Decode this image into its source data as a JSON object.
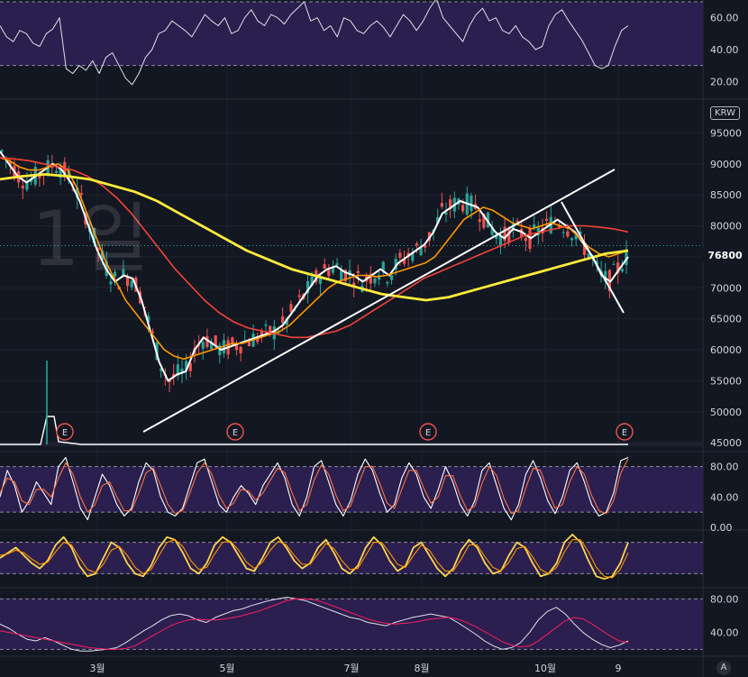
{
  "watermark": "1일",
  "currency_button": "KRW",
  "auto_button": "A",
  "last_price": "76800",
  "earnings_marker": "E",
  "colors": {
    "background": "#131722",
    "panel_band": "#2a1f4e",
    "up_candle": "#26a69a",
    "down_candle": "#ef5350",
    "ma_white": "#ffffff",
    "ma_orange": "#ff9800",
    "ma_red": "#f44336",
    "ma_yellow": "#ffeb3b",
    "trendline": "#ffffff"
  },
  "chart_data": [
    {
      "type": "line",
      "panel": "rsi",
      "ylim": [
        10,
        70
      ],
      "y_ticks": [
        "60.00",
        "40.00",
        "20.00"
      ],
      "bands": [
        30,
        70
      ],
      "series": [
        {
          "values": [
            55,
            48,
            45,
            52,
            50,
            44,
            42,
            50,
            53,
            60,
            28,
            25,
            30,
            27,
            33,
            25,
            35,
            38,
            30,
            22,
            18,
            25,
            35,
            40,
            50,
            52,
            58,
            55,
            52,
            48,
            55,
            62,
            58,
            55,
            60,
            50,
            52,
            60,
            65,
            58,
            55,
            62,
            60,
            56,
            62,
            66,
            70,
            58,
            60,
            52,
            55,
            48,
            60,
            58,
            52,
            50,
            55,
            58,
            54,
            48,
            55,
            62,
            58,
            52,
            58,
            66,
            72,
            60,
            55,
            50,
            45,
            55,
            62,
            66,
            58,
            60,
            52,
            50,
            55,
            48,
            45,
            40,
            42,
            55,
            62,
            65,
            58,
            52,
            46,
            38,
            30,
            28,
            30,
            42,
            52,
            55
          ]
        }
      ]
    },
    {
      "type": "line",
      "panel": "price",
      "ylim": [
        44000,
        100000
      ],
      "y_ticks": [
        "95000",
        "90000",
        "85000",
        "80000",
        "75000",
        "70000",
        "65000",
        "60000",
        "55000",
        "50000",
        "45000"
      ],
      "x_ticks": [
        "3월",
        "5월",
        "7월",
        "8월",
        "10월",
        "9"
      ],
      "series": [
        {
          "values": [
            92000,
            90000,
            88000,
            87000,
            88000,
            89000,
            90000,
            89000,
            87000,
            84000,
            80000,
            76000,
            73000,
            71000,
            72000,
            71500,
            68000,
            63000,
            58000,
            55000,
            56000,
            56500,
            60000,
            62000,
            61000,
            60000,
            60500,
            61000,
            61500,
            62000,
            62500,
            63000,
            64000,
            66000,
            68000,
            70000,
            72000,
            73000,
            73500,
            72500,
            72000,
            71000,
            72000,
            73000,
            72000,
            74000,
            75000,
            76000,
            77000,
            79000,
            82000,
            83000,
            84000,
            83500,
            83000,
            81000,
            79000,
            78000,
            79500,
            79000,
            78000,
            79000,
            80000,
            81000,
            80000,
            79000,
            77000,
            75000,
            72000,
            71000,
            73000,
            75000
          ]
        },
        {
          "values": [
            91000,
            90500,
            89500,
            89000,
            89000,
            89500,
            90000,
            89000,
            86000,
            82000,
            78000,
            74000,
            71000,
            68000,
            66000,
            64000,
            62000,
            60000,
            59000,
            58500,
            59000,
            59500,
            60000,
            60500,
            61000,
            61000,
            61500,
            62000,
            62500,
            63000,
            64000,
            65500,
            67000,
            68500,
            70000,
            71000,
            71500,
            72000,
            72000,
            71800,
            72000,
            72500,
            73000,
            73500,
            74000,
            75000,
            77000,
            79000,
            81000,
            82000,
            83000,
            82500,
            81500,
            80500,
            80000,
            79500,
            80000,
            80500,
            80000,
            79500,
            78000,
            76500,
            75500,
            75000,
            75500,
            76000
          ]
        },
        {
          "values": [
            91000,
            90800,
            90500,
            90000,
            89500,
            89000,
            88000,
            86500,
            84500,
            82000,
            79000,
            76000,
            73000,
            70500,
            68000,
            66000,
            64500,
            63500,
            63000,
            62500,
            62000,
            62000,
            62500,
            63000,
            64000,
            65500,
            67000,
            68500,
            70000,
            71500,
            72500,
            73500,
            74500,
            75500,
            76500,
            77500,
            78500,
            79000,
            79500,
            80000,
            80000,
            79800,
            79500,
            79000
          ]
        },
        {
          "values": [
            87500,
            88000,
            88300,
            88000,
            87500,
            86500,
            85500,
            84000,
            82000,
            80000,
            78000,
            76000,
            74500,
            73000,
            72000,
            71000,
            70000,
            69000,
            68500,
            68000,
            68500,
            69500,
            70500,
            71500,
            72500,
            73500,
            74500,
            75500,
            76000
          ]
        }
      ]
    },
    {
      "type": "line",
      "panel": "stochastic",
      "ylim": [
        0,
        95
      ],
      "y_ticks": [
        "80.00",
        "40.00",
        "0.00"
      ],
      "bands": [
        20,
        80
      ],
      "series": [
        {
          "values": [
            40,
            75,
            55,
            20,
            35,
            60,
            45,
            30,
            80,
            92,
            60,
            25,
            10,
            40,
            70,
            55,
            30,
            15,
            25,
            60,
            85,
            75,
            40,
            20,
            15,
            25,
            55,
            85,
            90,
            60,
            30,
            20,
            40,
            55,
            45,
            30,
            55,
            70,
            85,
            65,
            30,
            15,
            40,
            80,
            88,
            60,
            30,
            15,
            35,
            70,
            90,
            75,
            45,
            20,
            30,
            65,
            85,
            70,
            40,
            25,
            50,
            80,
            60,
            30,
            15,
            35,
            75,
            85,
            55,
            25,
            10,
            30,
            70,
            88,
            65,
            35,
            18,
            40,
            75,
            85,
            60,
            30,
            15,
            20,
            45,
            88,
            92
          ]
        },
        {
          "values": [
            45,
            65,
            60,
            35,
            30,
            50,
            50,
            40,
            65,
            85,
            70,
            40,
            20,
            30,
            55,
            60,
            40,
            22,
            22,
            45,
            72,
            78,
            55,
            30,
            18,
            22,
            45,
            72,
            85,
            70,
            42,
            25,
            32,
            50,
            48,
            36,
            45,
            62,
            78,
            72,
            45,
            22,
            30,
            62,
            82,
            70,
            42,
            22,
            28,
            55,
            80,
            80,
            58,
            32,
            25,
            50,
            75,
            75,
            52,
            32,
            40,
            68,
            68,
            42,
            22,
            28,
            58,
            80,
            68,
            38,
            18,
            22,
            52,
            78,
            75,
            48,
            25,
            30,
            60,
            80,
            70,
            42,
            22,
            18,
            35,
            72,
            90
          ]
        }
      ]
    },
    {
      "type": "line",
      "panel": "stoch_rsi",
      "ylim": [
        0,
        100
      ],
      "bands": [
        20,
        80
      ],
      "series": [
        {
          "values": [
            50,
            60,
            70,
            55,
            40,
            30,
            45,
            75,
            90,
            70,
            35,
            15,
            20,
            50,
            80,
            70,
            40,
            20,
            15,
            35,
            70,
            90,
            85,
            60,
            30,
            20,
            40,
            75,
            90,
            80,
            55,
            30,
            25,
            50,
            80,
            90,
            70,
            45,
            30,
            40,
            70,
            85,
            60,
            30,
            20,
            35,
            70,
            90,
            75,
            45,
            25,
            35,
            70,
            80,
            55,
            30,
            15,
            30,
            65,
            85,
            70,
            40,
            20,
            25,
            55,
            80,
            70,
            40,
            15,
            20,
            40,
            80,
            95,
            80,
            45,
            15,
            10,
            15,
            40,
            80
          ]
        },
        {
          "values": [
            55,
            58,
            65,
            60,
            48,
            38,
            42,
            62,
            80,
            75,
            50,
            28,
            22,
            38,
            65,
            72,
            55,
            32,
            20,
            28,
            55,
            80,
            85,
            72,
            45,
            28,
            32,
            58,
            80,
            82,
            65,
            42,
            30,
            42,
            65,
            82,
            75,
            55,
            38,
            38,
            58,
            78,
            68,
            45,
            28,
            30,
            55,
            80,
            80,
            60,
            38,
            32,
            55,
            75,
            65,
            42,
            25,
            25,
            48,
            75,
            75,
            52,
            32,
            25,
            42,
            68,
            72,
            52,
            28,
            20,
            32,
            62,
            85,
            85,
            62,
            32,
            15,
            12,
            28,
            60
          ]
        }
      ]
    },
    {
      "type": "line",
      "panel": "lower_oscillator",
      "ylim": [
        15,
        90
      ],
      "y_ticks": [
        "80.00",
        "40.00"
      ],
      "bands": [
        20,
        80
      ],
      "series": [
        {
          "values": [
            50,
            45,
            38,
            32,
            30,
            34,
            30,
            25,
            20,
            18,
            18,
            19,
            20,
            22,
            28,
            35,
            42,
            48,
            55,
            60,
            62,
            60,
            55,
            52,
            58,
            62,
            66,
            68,
            72,
            75,
            78,
            80,
            82,
            80,
            78,
            74,
            70,
            66,
            62,
            58,
            56,
            52,
            50,
            48,
            52,
            55,
            58,
            60,
            62,
            60,
            58,
            52,
            45,
            38,
            30,
            24,
            20,
            22,
            28,
            40,
            55,
            65,
            70,
            62,
            50,
            40,
            32,
            26,
            22,
            25,
            30
          ]
        },
        {
          "values": [
            42,
            40,
            38,
            36,
            34,
            32,
            30,
            28,
            26,
            24,
            22,
            21,
            20,
            20,
            21,
            24,
            30,
            36,
            42,
            48,
            52,
            55,
            56,
            55,
            55,
            56,
            58,
            60,
            63,
            66,
            70,
            74,
            78,
            80,
            80,
            79,
            76,
            72,
            68,
            64,
            60,
            56,
            53,
            51,
            50,
            51,
            52,
            54,
            56,
            57,
            58,
            56,
            52,
            47,
            41,
            35,
            29,
            25,
            23,
            24,
            30,
            38,
            46,
            54,
            58,
            56,
            50,
            43,
            36,
            30,
            28
          ]
        }
      ]
    }
  ]
}
